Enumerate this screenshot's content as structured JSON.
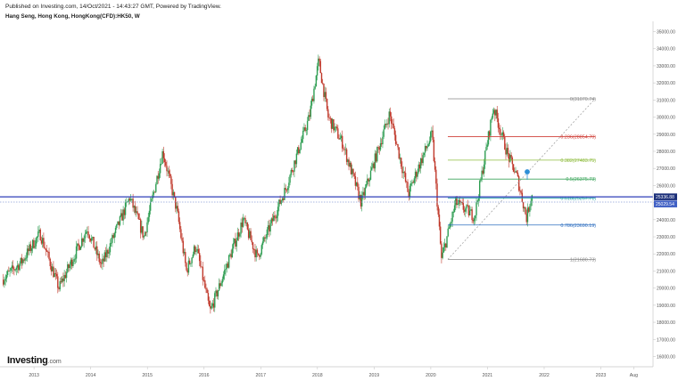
{
  "header": {
    "published": "Published on Investing.com, 14/Oct/2021 - 14:43:27 GMT, Powered by TradingView.",
    "title": "Hang Seng, Hong Kong, HongKong(CFD):HK50, W"
  },
  "logo": {
    "main": "Investing",
    "suffix": ".com"
  },
  "colors": {
    "up": "#2e9d52",
    "down": "#c0392b",
    "axis_line": "#c8c8c8",
    "level_line": "#2f3fb8",
    "dotted_line": "#8da0d8",
    "price_badge": "#1b2f7a",
    "fib_0": "#888888",
    "fib_236": "#d0413a",
    "fib_382": "#8fbc3f",
    "fib_5": "#3aa55a",
    "fib_618": "#29a0a8",
    "fib_786": "#2f6fc0",
    "fib_1": "#888888"
  },
  "chart_data": {
    "type": "candlestick",
    "symbol": "HK50",
    "interval": "W",
    "x_labels": [
      "2013",
      "2014",
      "2015",
      "2016",
      "2017",
      "2018",
      "2019",
      "2020",
      "2021",
      "2022",
      "2023",
      "Aug"
    ],
    "y_ticks": [
      16000,
      17000,
      18000,
      19000,
      20000,
      21000,
      22000,
      23000,
      24000,
      25000,
      26000,
      27000,
      28000,
      29000,
      30000,
      31000,
      32000,
      33000,
      34000,
      35000
    ],
    "y_tick_labels": [
      "16000.00",
      "17000.00",
      "18000.00",
      "19000.00",
      "20000.00",
      "21000.00",
      "22000.00",
      "23000.00",
      "24000.00",
      "25000.00",
      "26000.00",
      "27000.00",
      "28000.00",
      "29000.00",
      "30000.00",
      "31000.00",
      "32000.00",
      "33000.00",
      "34000.00",
      "35000.00"
    ],
    "ylim": [
      15400,
      35600
    ],
    "key_points": [
      [
        "2012-06",
        20500
      ],
      [
        "2012-10",
        21500
      ],
      [
        "2013-02",
        23200
      ],
      [
        "2013-06",
        20000
      ],
      [
        "2013-12",
        23500
      ],
      [
        "2014-03",
        21300
      ],
      [
        "2014-09",
        25300
      ],
      [
        "2014-12",
        23000
      ],
      [
        "2015-04",
        28000
      ],
      [
        "2015-07",
        24500
      ],
      [
        "2015-09",
        21000
      ],
      [
        "2015-11",
        22500
      ],
      [
        "2016-02",
        18600
      ],
      [
        "2016-09",
        24000
      ],
      [
        "2016-12",
        21800
      ],
      [
        "2017-06",
        25800
      ],
      [
        "2017-11",
        30000
      ],
      [
        "2018-01",
        33300
      ],
      [
        "2018-03",
        30000
      ],
      [
        "2018-06",
        28500
      ],
      [
        "2018-10",
        25000
      ],
      [
        "2019-04",
        30200
      ],
      [
        "2019-08",
        25500
      ],
      [
        "2019-10",
        27000
      ],
      [
        "2020-01",
        29000
      ],
      [
        "2020-03",
        21700
      ],
      [
        "2020-06",
        25000
      ],
      [
        "2020-10",
        24200
      ],
      [
        "2021-02",
        30600
      ],
      [
        "2021-05",
        27800
      ],
      [
        "2021-07",
        26500
      ],
      [
        "2021-09",
        24100
      ],
      [
        "2021-10",
        25400
      ]
    ],
    "horizontal_level": 25336.88,
    "last_price": 25029.54,
    "price_labels": [
      "25336.88",
      "25029.54"
    ],
    "fibonacci": {
      "levels": [
        {
          "label": "0(31070.74)",
          "ratio": 0,
          "price": 31070.74
        },
        {
          "label": "0.236(28854.70)",
          "ratio": 0.236,
          "price": 28854.7
        },
        {
          "label": "0.382(27483.75)",
          "ratio": 0.382,
          "price": 27483.75
        },
        {
          "label": "0.5(26375.73)",
          "ratio": 0.5,
          "price": 26375.73
        },
        {
          "label": "0.618(25267.71)",
          "ratio": 0.618,
          "price": 25267.71
        },
        {
          "label": "0.786(23690.19)",
          "ratio": 0.786,
          "price": 23690.19
        },
        {
          "label": "1(21680.73)",
          "ratio": 1,
          "price": 21680.73
        }
      ]
    },
    "legend": "none",
    "grid": false
  }
}
